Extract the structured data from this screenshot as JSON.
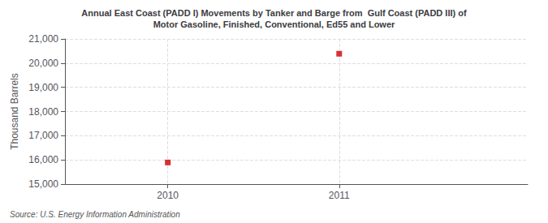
{
  "chart_data": {
    "type": "scatter",
    "title": "Annual East Coast (PADD I) Movements by Tanker and Barge from  Gulf Coast (PADD III) of\nMotor Gasoline, Finished, Conventional, Ed55 and Lower",
    "ylabel": "Thousand Barrels",
    "annotations": [
      "Source: U.S. Energy Information Administration"
    ],
    "x": [
      2010,
      2011
    ],
    "values": [
      15893,
      20388
    ],
    "color": "#cc0000",
    "marker": "square",
    "xlim": [
      2009.4,
      2012.1
    ],
    "xticks": [
      2010,
      2011
    ],
    "ylim": [
      15000,
      21000
    ],
    "yticks": [
      {
        "value": 15000,
        "label": "15,000"
      },
      {
        "value": 16000,
        "label": "16,000"
      },
      {
        "value": 17000,
        "label": "17,000"
      },
      {
        "value": 18000,
        "label": "18,000"
      },
      {
        "value": 19000,
        "label": "19,000"
      },
      {
        "value": 20000,
        "label": "20,000"
      },
      {
        "value": 21000,
        "label": "21,000"
      }
    ],
    "grid": true
  }
}
